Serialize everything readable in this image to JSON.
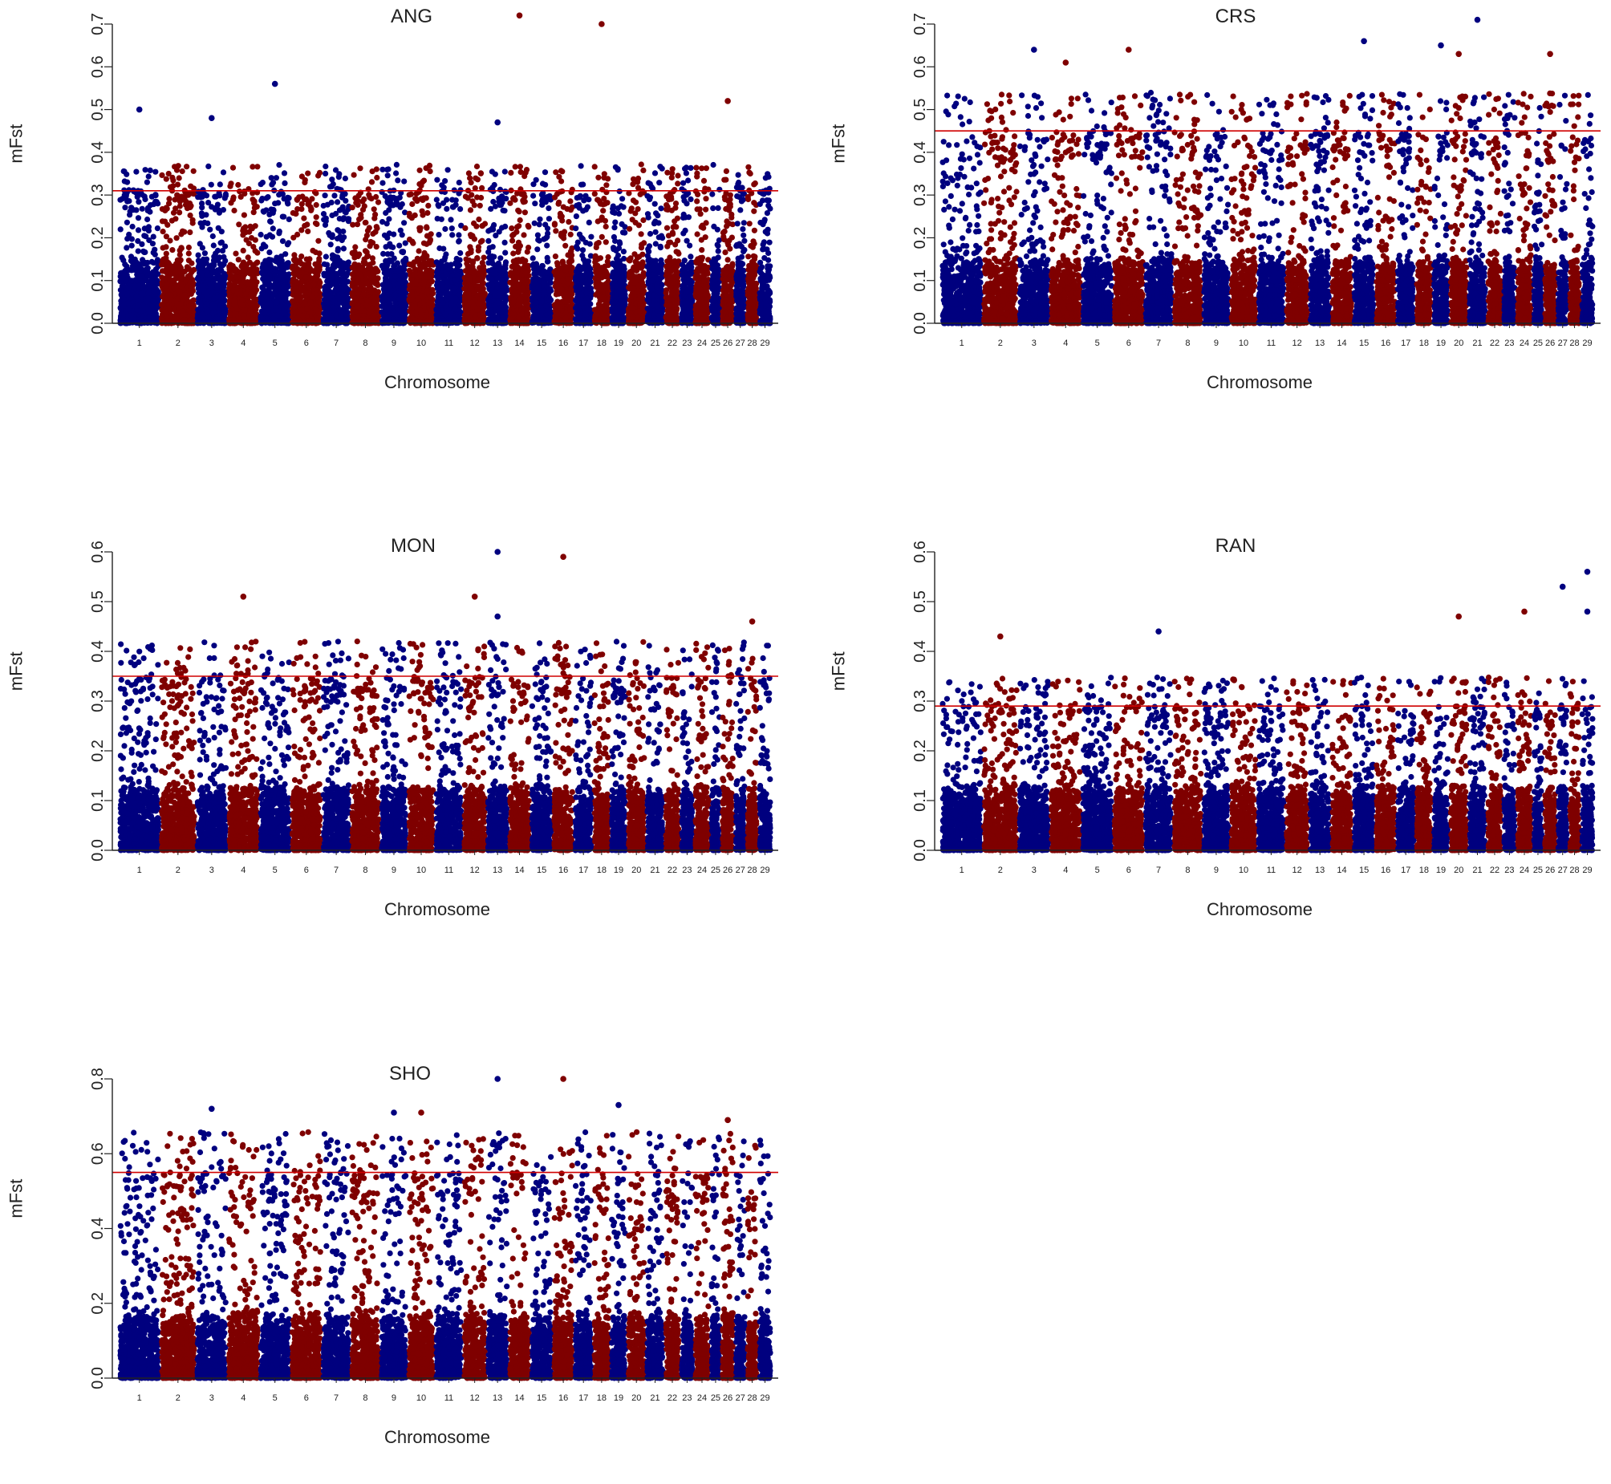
{
  "chart_data": [
    {
      "type": "scatter",
      "title": "ANG",
      "xlabel": "Chromosome",
      "ylabel": "mFst",
      "ylim": [
        0,
        0.7
      ],
      "yticks": [
        "0.0",
        "0.1",
        "0.2",
        "0.3",
        "0.4",
        "0.5",
        "0.6",
        "0.7"
      ],
      "threshold": 0.31,
      "seed": 11,
      "top_points": [
        {
          "chromosome": "14",
          "value": 0.72
        },
        {
          "chromosome": "18",
          "value": 0.7
        },
        {
          "chromosome": "5",
          "value": 0.56
        },
        {
          "chromosome": "26",
          "value": 0.52
        },
        {
          "chromosome": "1",
          "value": 0.5
        },
        {
          "chromosome": "3",
          "value": 0.48
        },
        {
          "chromosome": "13",
          "value": 0.47
        }
      ]
    },
    {
      "type": "scatter",
      "title": "CRS",
      "xlabel": "Chromosome",
      "ylabel": "mFst",
      "ylim": [
        0,
        0.7
      ],
      "yticks": [
        "0.0",
        "0.1",
        "0.2",
        "0.3",
        "0.4",
        "0.5",
        "0.6",
        "0.7"
      ],
      "threshold": 0.45,
      "seed": 23,
      "top_points": [
        {
          "chromosome": "21",
          "value": 0.71
        },
        {
          "chromosome": "15",
          "value": 0.66
        },
        {
          "chromosome": "19",
          "value": 0.65
        },
        {
          "chromosome": "3",
          "value": 0.64
        },
        {
          "chromosome": "6",
          "value": 0.64
        },
        {
          "chromosome": "20",
          "value": 0.63
        },
        {
          "chromosome": "26",
          "value": 0.63
        },
        {
          "chromosome": "4",
          "value": 0.61
        }
      ]
    },
    {
      "type": "scatter",
      "title": "MON",
      "xlabel": "Chromosome",
      "ylabel": "mFst",
      "ylim": [
        0,
        0.6
      ],
      "yticks": [
        "0.0",
        "0.1",
        "0.2",
        "0.3",
        "0.4",
        "0.5",
        "0.6"
      ],
      "threshold": 0.35,
      "seed": 37,
      "top_points": [
        {
          "chromosome": "13",
          "value": 0.6
        },
        {
          "chromosome": "16",
          "value": 0.59
        },
        {
          "chromosome": "4",
          "value": 0.51
        },
        {
          "chromosome": "12",
          "value": 0.51
        },
        {
          "chromosome": "13",
          "value": 0.47
        },
        {
          "chromosome": "28",
          "value": 0.46
        }
      ]
    },
    {
      "type": "scatter",
      "title": "RAN",
      "xlabel": "Chromosome",
      "ylabel": "mFst",
      "ylim": [
        0,
        0.6
      ],
      "yticks": [
        "0.0",
        "0.1",
        "0.2",
        "0.3",
        "0.4",
        "0.5",
        "0.6"
      ],
      "threshold": 0.29,
      "seed": 41,
      "top_points": [
        {
          "chromosome": "29",
          "value": 0.56
        },
        {
          "chromosome": "27",
          "value": 0.53
        },
        {
          "chromosome": "29",
          "value": 0.48
        },
        {
          "chromosome": "24",
          "value": 0.48
        },
        {
          "chromosome": "20",
          "value": 0.47
        },
        {
          "chromosome": "7",
          "value": 0.44
        },
        {
          "chromosome": "2",
          "value": 0.43
        }
      ]
    },
    {
      "type": "scatter",
      "title": "SHO",
      "xlabel": "Chromosome",
      "ylabel": "mFst",
      "ylim": [
        0,
        0.8
      ],
      "yticks": [
        "0.0",
        "0.2",
        "0.4",
        "0.6",
        "0.8"
      ],
      "threshold": 0.55,
      "seed": 53,
      "top_points": [
        {
          "chromosome": "13",
          "value": 0.8
        },
        {
          "chromosome": "16",
          "value": 0.8
        },
        {
          "chromosome": "19",
          "value": 0.73
        },
        {
          "chromosome": "3",
          "value": 0.72
        },
        {
          "chromosome": "9",
          "value": 0.71
        },
        {
          "chromosome": "10",
          "value": 0.71
        },
        {
          "chromosome": "26",
          "value": 0.69
        }
      ]
    }
  ],
  "chromosomes": [
    "1",
    "2",
    "3",
    "4",
    "5",
    "6",
    "7",
    "8",
    "9",
    "10",
    "11",
    "12",
    "13",
    "14",
    "15",
    "16",
    "17",
    "18",
    "19",
    "20",
    "21",
    "22",
    "23",
    "24",
    "25",
    "26",
    "27",
    "28",
    "29"
  ],
  "chromosome_sizes": [
    158,
    137,
    121,
    121,
    121,
    119,
    110,
    113,
    105,
    104,
    107,
    91,
    84,
    84,
    85,
    81,
    73,
    66,
    64,
    72,
    71,
    61,
    52,
    62,
    42,
    51,
    45,
    46,
    52
  ],
  "colors": {
    "odd": "#00007f",
    "even": "#7f0000",
    "threshold": "#d00000",
    "axis": "#222222"
  }
}
